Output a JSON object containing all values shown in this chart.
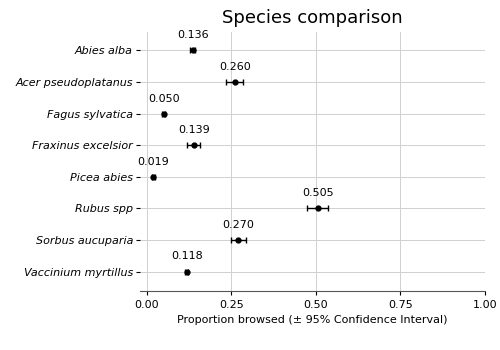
{
  "title": "Species comparison",
  "xlabel": "Proportion browsed (± 95% Confidence Interval)",
  "species": [
    "Abies alba",
    "Acer pseudoplatanus",
    "Fagus sylvatica",
    "Fraxinus excelsior",
    "Picea abies",
    "Rubus spp",
    "Sorbus aucuparia",
    "Vaccinium myrtillus"
  ],
  "means": [
    0.136,
    0.26,
    0.05,
    0.139,
    0.019,
    0.505,
    0.27,
    0.118
  ],
  "ci_lower": [
    0.128,
    0.235,
    0.045,
    0.12,
    0.015,
    0.475,
    0.248,
    0.113
  ],
  "ci_upper": [
    0.144,
    0.285,
    0.055,
    0.158,
    0.023,
    0.535,
    0.292,
    0.123
  ],
  "xlim": [
    -0.02,
    1.0
  ],
  "xticks": [
    0.0,
    0.25,
    0.5,
    0.75,
    1.0
  ],
  "title_fontsize": 13,
  "label_fontsize": 8,
  "tick_fontsize": 8,
  "annotation_fontsize": 8,
  "species_fontsize": 8,
  "point_color": "black",
  "line_color": "black",
  "background_color": "white",
  "grid_color": "#d0d0d0"
}
